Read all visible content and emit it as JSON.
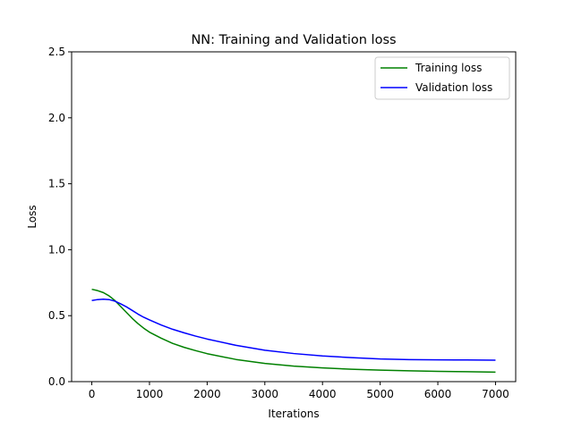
{
  "chart_data": {
    "type": "line",
    "title": "NN: Training and Validation loss",
    "xlabel": "Iterations",
    "ylabel": "Loss",
    "xlim": [
      -350,
      7350
    ],
    "ylim": [
      0,
      2.5
    ],
    "xticks": [
      0,
      1000,
      2000,
      3000,
      4000,
      5000,
      6000,
      7000
    ],
    "yticks": [
      0.0,
      0.5,
      1.0,
      1.5,
      2.0,
      2.5
    ],
    "xtick_labels": [
      "0",
      "1000",
      "2000",
      "3000",
      "4000",
      "5000",
      "6000",
      "7000"
    ],
    "ytick_labels": [
      "0.0",
      "0.5",
      "1.0",
      "1.5",
      "2.0",
      "2.5"
    ],
    "grid": false,
    "legend_position": "top-right",
    "series": [
      {
        "name": "Training loss",
        "color": "#008000",
        "x": [
          0,
          100,
          200,
          300,
          400,
          500,
          600,
          700,
          800,
          900,
          1000,
          1200,
          1400,
          1600,
          1800,
          2000,
          2500,
          3000,
          3500,
          4000,
          4500,
          5000,
          5500,
          6000,
          6500,
          7000
        ],
        "y": [
          0.7,
          0.69,
          0.675,
          0.65,
          0.615,
          0.57,
          0.525,
          0.48,
          0.44,
          0.405,
          0.375,
          0.33,
          0.29,
          0.26,
          0.235,
          0.212,
          0.168,
          0.138,
          0.118,
          0.104,
          0.094,
          0.087,
          0.082,
          0.078,
          0.075,
          0.072
        ]
      },
      {
        "name": "Validation loss",
        "color": "#0000ff",
        "x": [
          0,
          100,
          200,
          300,
          400,
          500,
          600,
          700,
          800,
          900,
          1000,
          1200,
          1400,
          1600,
          1800,
          2000,
          2500,
          3000,
          3500,
          4000,
          4500,
          5000,
          5500,
          6000,
          6500,
          7000
        ],
        "y": [
          0.615,
          0.622,
          0.625,
          0.622,
          0.61,
          0.59,
          0.567,
          0.54,
          0.512,
          0.488,
          0.468,
          0.43,
          0.397,
          0.37,
          0.345,
          0.323,
          0.275,
          0.238,
          0.213,
          0.195,
          0.182,
          0.172,
          0.167,
          0.165,
          0.164,
          0.163
        ]
      }
    ]
  }
}
